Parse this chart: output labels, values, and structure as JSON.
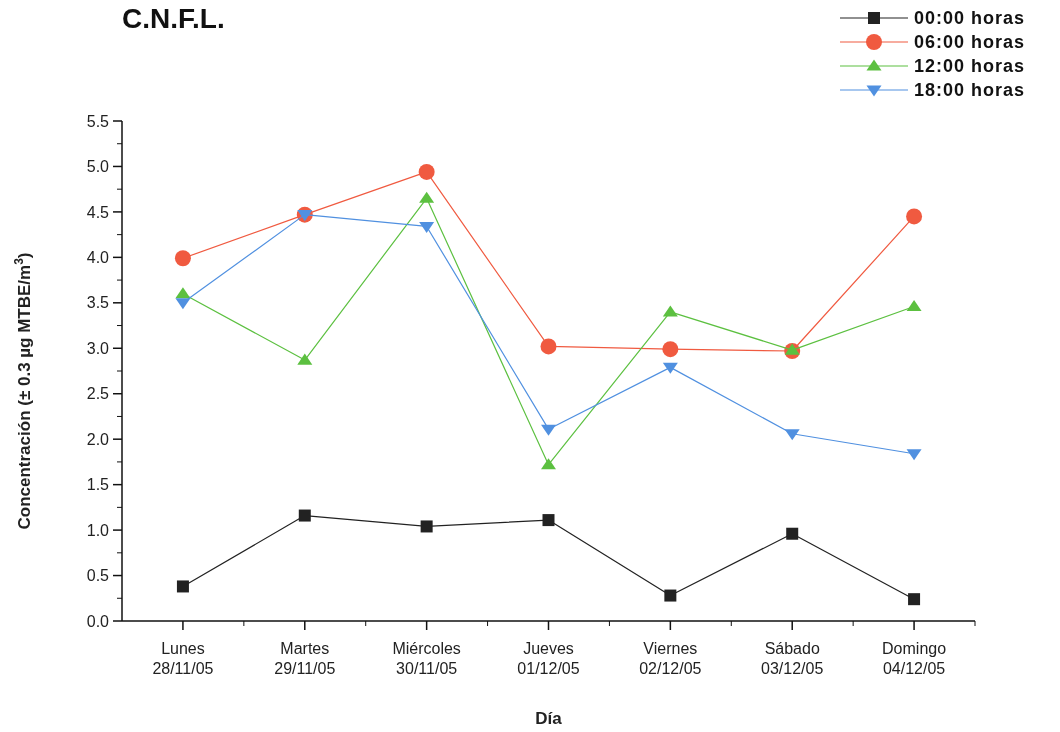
{
  "chart_data": {
    "type": "line",
    "title": "C.N.F.L.",
    "xlabel": "Día",
    "ylabel": "Concentración (± 0.3 µg MTBE/m$^{3}$)",
    "categories": [
      "Lunes\n28/11/05",
      "Martes\n29/11/05",
      "Miércoles\n30/11/05",
      "Jueves\n01/12/05",
      "Viernes\n02/12/05",
      "Sábado\n03/12/05",
      "Domingo\n04/12/05"
    ],
    "series": [
      {
        "name": "00:00 horas",
        "color": "#222222",
        "marker": "square",
        "values": [
          0.38,
          1.16,
          1.04,
          1.11,
          0.28,
          0.96,
          0.24
        ]
      },
      {
        "name": "06:00 horas",
        "color": "#f05a40",
        "marker": "circle",
        "values": [
          3.99,
          4.47,
          4.94,
          3.02,
          2.99,
          2.97,
          4.45
        ]
      },
      {
        "name": "12:00 horas",
        "color": "#5cc040",
        "marker": "triangle",
        "values": [
          3.6,
          2.87,
          4.65,
          1.72,
          3.4,
          2.98,
          3.46
        ]
      },
      {
        "name": "18:00 horas",
        "color": "#5090e0",
        "marker": "triangle-down",
        "values": [
          3.5,
          4.47,
          4.34,
          2.11,
          2.79,
          2.06,
          1.84
        ]
      }
    ],
    "ylim": [
      0,
      5.5
    ],
    "yticks": [
      {
        "value": 0,
        "label": "0.0"
      },
      {
        "value": 0.5,
        "label": "0.5"
      },
      {
        "value": 1,
        "label": "1.0"
      },
      {
        "value": 1.5,
        "label": "1.5"
      },
      {
        "value": 2,
        "label": "2.0"
      },
      {
        "value": 2.5,
        "label": "2.5"
      },
      {
        "value": 3,
        "label": "3.0"
      },
      {
        "value": 3.5,
        "label": "3.5"
      },
      {
        "value": 4,
        "label": "4.0"
      },
      {
        "value": 4.5,
        "label": "4.5"
      },
      {
        "value": 5,
        "label": "5.0"
      },
      {
        "value": 5.5,
        "label": "5.5"
      }
    ],
    "grid": false,
    "legend": "top right",
    "line_style": "solid"
  }
}
